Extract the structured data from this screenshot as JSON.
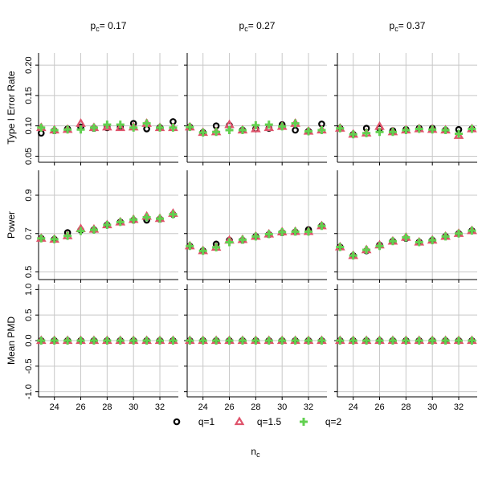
{
  "chart_data": {
    "type": "scatter",
    "title": "",
    "xlabel_main": "n",
    "xlabel_sub": "c",
    "x": [
      23,
      24,
      25,
      26,
      27,
      28,
      29,
      30,
      31,
      32,
      33
    ],
    "xticks": [
      24,
      26,
      28,
      30,
      32
    ],
    "xlim": [
      22.8,
      33.4
    ],
    "columns": [
      {
        "prefix": "p",
        "sub": "c",
        "value": "= 0.17"
      },
      {
        "prefix": "p",
        "sub": "c",
        "value": "= 0.27"
      },
      {
        "prefix": "p",
        "sub": "c",
        "value": "= 0.37"
      }
    ],
    "rows": [
      {
        "label": "Type I Error Rate",
        "ylim": [
          0.04,
          0.22
        ],
        "ticks": [
          0.05,
          0.1,
          0.15,
          0.2
        ],
        "tick_labels": [
          "0.05",
          "0.10",
          "0.15",
          "0.20"
        ]
      },
      {
        "label": "Power",
        "ylim": [
          0.46,
          1.03
        ],
        "ticks": [
          0.5,
          0.7,
          0.9
        ],
        "tick_labels": [
          "0.5",
          "0.7",
          "0.9"
        ]
      },
      {
        "label": "Mean PMD",
        "ylim": [
          -1.1,
          1.1
        ],
        "ticks": [
          -1.0,
          -0.5,
          0.0,
          0.5,
          1.0
        ],
        "tick_labels": [
          "-1.0",
          "-0.5",
          "0.0",
          "0.5",
          "1.0"
        ]
      }
    ],
    "legend": {
      "position": "bottom",
      "items": [
        {
          "name": "q=1",
          "shape": "circle",
          "color": "#000000"
        },
        {
          "name": "q=1.5",
          "shape": "triangle",
          "color": "#df536b"
        },
        {
          "name": "q=2",
          "shape": "plus",
          "color": "#61d04f"
        }
      ]
    },
    "panels": [
      [
        {
          "series": [
            {
              "name": "q=1",
              "values": [
                0.088,
                0.092,
                0.095,
                0.098,
                0.096,
                0.097,
                0.098,
                0.104,
                0.095,
                0.097,
                0.107
              ]
            },
            {
              "name": "q=1.5",
              "values": [
                0.097,
                0.093,
                0.094,
                0.104,
                0.097,
                0.098,
                0.097,
                0.098,
                0.104,
                0.097,
                0.097
              ]
            },
            {
              "name": "q=2",
              "values": [
                0.097,
                0.093,
                0.094,
                0.094,
                0.097,
                0.102,
                0.102,
                0.097,
                0.104,
                0.097,
                0.097
              ]
            }
          ]
        },
        {
          "series": [
            {
              "name": "q=1",
              "values": [
                0.098,
                0.089,
                0.1,
                0.101,
                0.093,
                0.095,
                0.096,
                0.102,
                0.093,
                0.091,
                0.103
              ]
            },
            {
              "name": "q=1.5",
              "values": [
                0.098,
                0.089,
                0.09,
                0.102,
                0.093,
                0.095,
                0.097,
                0.099,
                0.104,
                0.091,
                0.093
              ]
            },
            {
              "name": "q=2",
              "values": [
                0.098,
                0.089,
                0.09,
                0.093,
                0.093,
                0.101,
                0.102,
                0.099,
                0.104,
                0.091,
                0.093
              ]
            }
          ]
        },
        {
          "series": [
            {
              "name": "q=1",
              "values": [
                0.096,
                0.086,
                0.096,
                0.096,
                0.092,
                0.094,
                0.096,
                0.096,
                0.093,
                0.094,
                0.095
              ]
            },
            {
              "name": "q=1.5",
              "values": [
                0.096,
                0.086,
                0.088,
                0.099,
                0.09,
                0.093,
                0.095,
                0.094,
                0.093,
                0.084,
                0.095
              ]
            },
            {
              "name": "q=2",
              "values": [
                0.096,
                0.086,
                0.088,
                0.09,
                0.09,
                0.093,
                0.095,
                0.094,
                0.093,
                0.087,
                0.095
              ]
            }
          ]
        }
      ],
      [
        {
          "series": [
            {
              "name": "q=1",
              "values": [
                0.675,
                0.67,
                0.705,
                0.718,
                0.72,
                0.745,
                0.76,
                0.77,
                0.77,
                0.775,
                0.8
              ]
            },
            {
              "name": "q=1.5",
              "values": [
                0.675,
                0.67,
                0.688,
                0.725,
                0.722,
                0.745,
                0.76,
                0.773,
                0.79,
                0.778,
                0.805
              ]
            },
            {
              "name": "q=2",
              "values": [
                0.675,
                0.67,
                0.688,
                0.713,
                0.72,
                0.745,
                0.76,
                0.773,
                0.785,
                0.778,
                0.8
              ]
            }
          ]
        },
        {
          "series": [
            {
              "name": "q=1",
              "values": [
                0.635,
                0.61,
                0.645,
                0.665,
                0.665,
                0.685,
                0.695,
                0.705,
                0.708,
                0.72,
                0.74
              ]
            },
            {
              "name": "q=1.5",
              "values": [
                0.635,
                0.61,
                0.628,
                0.665,
                0.668,
                0.685,
                0.697,
                0.708,
                0.71,
                0.71,
                0.74
              ]
            },
            {
              "name": "q=2",
              "values": [
                0.635,
                0.61,
                0.628,
                0.655,
                0.668,
                0.685,
                0.697,
                0.708,
                0.71,
                0.71,
                0.74
              ]
            }
          ]
        },
        {
          "series": [
            {
              "name": "q=1",
              "values": [
                0.63,
                0.585,
                0.61,
                0.64,
                0.66,
                0.675,
                0.655,
                0.665,
                0.685,
                0.7,
                0.715
              ]
            },
            {
              "name": "q=1.5",
              "values": [
                0.63,
                0.585,
                0.615,
                0.64,
                0.66,
                0.68,
                0.655,
                0.665,
                0.685,
                0.7,
                0.715
              ]
            },
            {
              "name": "q=2",
              "values": [
                0.63,
                0.585,
                0.615,
                0.635,
                0.66,
                0.68,
                0.655,
                0.665,
                0.685,
                0.7,
                0.715
              ]
            }
          ]
        }
      ],
      [
        {
          "series": [
            {
              "name": "q=1",
              "values": [
                0,
                0,
                0,
                0,
                0,
                0,
                0,
                0,
                0,
                0,
                0
              ]
            },
            {
              "name": "q=1.5",
              "values": [
                0,
                0,
                0,
                0,
                0,
                0,
                0,
                0,
                0,
                0,
                0
              ]
            },
            {
              "name": "q=2",
              "values": [
                0,
                0,
                0,
                0,
                0,
                0,
                0,
                0,
                0,
                0,
                0
              ]
            }
          ]
        },
        {
          "series": [
            {
              "name": "q=1",
              "values": [
                0,
                0,
                0,
                0,
                0,
                0,
                0,
                0,
                0,
                0,
                0
              ]
            },
            {
              "name": "q=1.5",
              "values": [
                0,
                0,
                0,
                0,
                0,
                0,
                0,
                0,
                0,
                0,
                0
              ]
            },
            {
              "name": "q=2",
              "values": [
                0,
                0,
                0,
                0,
                0,
                0,
                0,
                0,
                0,
                0,
                0
              ]
            }
          ]
        },
        {
          "series": [
            {
              "name": "q=1",
              "values": [
                0,
                0,
                0,
                0,
                0,
                0,
                0,
                0,
                0,
                0,
                0
              ]
            },
            {
              "name": "q=1.5",
              "values": [
                0,
                0,
                0,
                0,
                0,
                0,
                0,
                0,
                0,
                0,
                0
              ]
            },
            {
              "name": "q=2",
              "values": [
                0,
                0,
                0,
                0,
                0,
                0,
                0,
                0,
                0,
                0,
                0
              ]
            }
          ]
        }
      ]
    ]
  }
}
